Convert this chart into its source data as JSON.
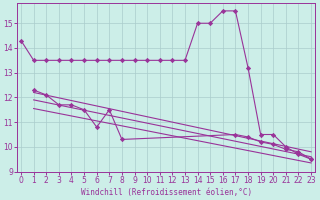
{
  "xlabel": "Windchill (Refroidissement éolien,°C)",
  "bg_color": "#cceee8",
  "line_color": "#993399",
  "grid_color": "#aacccc",
  "line1_x": [
    0,
    1,
    2,
    3,
    4,
    5,
    6,
    7,
    8,
    9,
    10,
    11,
    12,
    13,
    14,
    15,
    16,
    17,
    18,
    19,
    20,
    21,
    22,
    23
  ],
  "line1_y": [
    14.3,
    13.5,
    13.5,
    13.5,
    13.5,
    13.5,
    13.5,
    13.5,
    13.5,
    13.5,
    13.5,
    13.5,
    13.5,
    13.5,
    15.0,
    15.0,
    15.5,
    15.5,
    13.2,
    10.5,
    10.5,
    10.0,
    9.7,
    9.5
  ],
  "line2_x": [
    1,
    2,
    3,
    4,
    5,
    6,
    7,
    8,
    17,
    18,
    19,
    20,
    21,
    22,
    23
  ],
  "line2_y": [
    12.3,
    12.1,
    11.7,
    11.7,
    11.5,
    10.8,
    11.5,
    10.3,
    10.5,
    10.4,
    10.2,
    10.1,
    9.9,
    9.8,
    9.5
  ],
  "trend1_x": [
    1,
    23
  ],
  "trend1_y": [
    12.2,
    9.8
  ],
  "trend2_x": [
    1,
    23
  ],
  "trend2_y": [
    11.9,
    9.6
  ],
  "trend3_x": [
    1,
    23
  ],
  "trend3_y": [
    11.55,
    9.35
  ],
  "ylim": [
    9.0,
    15.8
  ],
  "xlim": [
    -0.3,
    23.3
  ],
  "yticks": [
    9,
    10,
    11,
    12,
    13,
    14,
    15
  ],
  "xticks": [
    0,
    1,
    2,
    3,
    4,
    5,
    6,
    7,
    8,
    9,
    10,
    11,
    12,
    13,
    14,
    15,
    16,
    17,
    18,
    19,
    20,
    21,
    22,
    23
  ],
  "tick_fontsize": 5.5,
  "xlabel_fontsize": 5.5
}
